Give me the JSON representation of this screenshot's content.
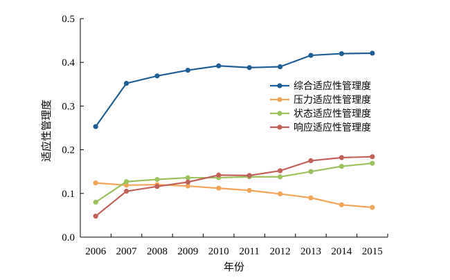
{
  "chart_data": {
    "type": "line",
    "title": "",
    "xlabel": "年份",
    "ylabel": "适应性管理度",
    "categories": [
      "2006",
      "2007",
      "2008",
      "2009",
      "2010",
      "2011",
      "2012",
      "2013",
      "2014",
      "2015"
    ],
    "ylim": [
      0,
      0.5
    ],
    "yticks": [
      "0.0",
      "0.1",
      "0.2",
      "0.3",
      "0.4",
      "0.5"
    ],
    "grid": false,
    "legend_position": "right",
    "series": [
      {
        "name": "综合适应性管理度",
        "color": "#1f5f95",
        "values": [
          0.253,
          0.352,
          0.369,
          0.382,
          0.392,
          0.388,
          0.39,
          0.416,
          0.42,
          0.421
        ]
      },
      {
        "name": "压力适应性管理度",
        "color": "#f2a65a",
        "values": [
          0.124,
          0.119,
          0.12,
          0.117,
          0.112,
          0.107,
          0.099,
          0.09,
          0.074,
          0.068
        ]
      },
      {
        "name": "状态适应性管理度",
        "color": "#9cc15f",
        "values": [
          0.08,
          0.127,
          0.132,
          0.136,
          0.136,
          0.138,
          0.138,
          0.15,
          0.162,
          0.169
        ]
      },
      {
        "name": "响应适应性管理度",
        "color": "#c0615a",
        "values": [
          0.048,
          0.105,
          0.116,
          0.126,
          0.142,
          0.141,
          0.152,
          0.175,
          0.182,
          0.184
        ]
      }
    ]
  }
}
